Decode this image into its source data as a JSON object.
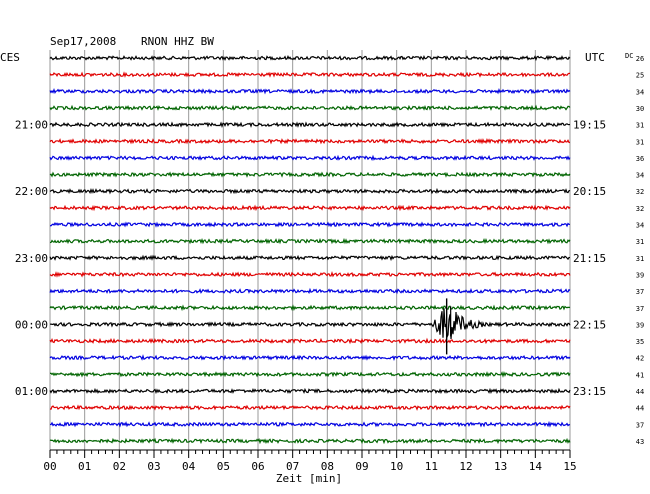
{
  "header": {
    "date": "Sep17,2008",
    "station": "RNON HHZ BW",
    "left_zone": "CES",
    "right_zone": "UTC",
    "dc_label": "DC"
  },
  "chart_data": {
    "type": "line",
    "title": "Sep17,2008 RNON HHZ BW",
    "xlabel": "Zeit [min]",
    "ylabel": "",
    "xlim": [
      0,
      15
    ],
    "x_ticks": [
      "00",
      "01",
      "02",
      "03",
      "04",
      "05",
      "06",
      "07",
      "08",
      "09",
      "10",
      "11",
      "12",
      "13",
      "14",
      "15"
    ],
    "x_minor_ticks_per_minute": 5,
    "grid": true,
    "trace_colors": [
      "#000000",
      "#e00000",
      "#0000e0",
      "#006400"
    ],
    "trace_count": 24,
    "left_time_labels": [
      {
        "trace": 4,
        "label": "21:00"
      },
      {
        "trace": 8,
        "label": "22:00"
      },
      {
        "trace": 12,
        "label": "23:00"
      },
      {
        "trace": 16,
        "label": "00:00"
      },
      {
        "trace": 20,
        "label": "01:00"
      }
    ],
    "right_time_labels": [
      {
        "trace": 4,
        "label": "19:15"
      },
      {
        "trace": 8,
        "label": "20:15"
      },
      {
        "trace": 12,
        "label": "21:15"
      },
      {
        "trace": 16,
        "label": "22:15"
      },
      {
        "trace": 20,
        "label": "23:15"
      }
    ],
    "dc_values": [
      "26",
      "25",
      "34",
      "30",
      "31",
      "31",
      "36",
      "34",
      "32",
      "32",
      "34",
      "31",
      "31",
      "39",
      "37",
      "37",
      "39",
      "35",
      "42",
      "41",
      "44",
      "44",
      "37",
      "43"
    ],
    "event": {
      "trace": 16,
      "start_min": 11.0,
      "peak_min": 11.5,
      "end_min": 12.5,
      "peak_amplitude_rel": 8
    }
  }
}
